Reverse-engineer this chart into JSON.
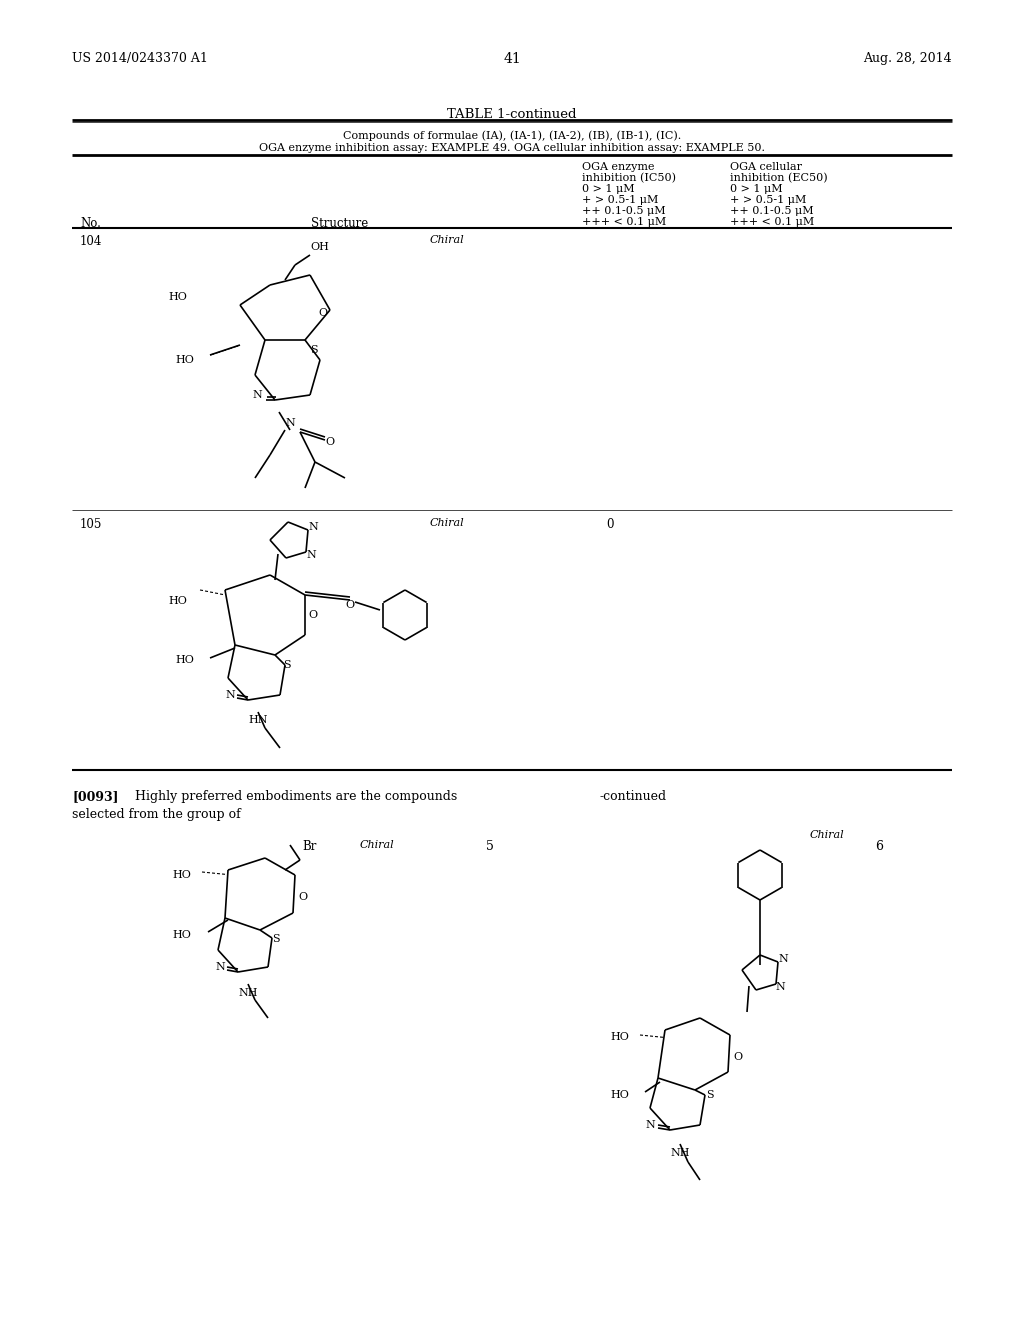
{
  "page_num": "41",
  "patent_num": "US 2014/0243370 A1",
  "patent_date": "Aug. 28, 2014",
  "table_title": "TABLE 1-continued",
  "table_subtitle1": "Compounds of formulae (IA), (IA-1), (IA-2), (IB), (IB-1), (IC).",
  "table_subtitle2": "OGA enzyme inhibition assay: EXAMPLE 49. OGA cellular inhibition assay: EXAMPLE 50.",
  "col1_header": "OGA enzyme\ninhibition (IC50)\n0 > 1 μM\n+ > 0.5-1 μM\n++ 0.1-0.5 μM\n+++ < 0.1 μM",
  "col2_header": "OGA cellular\ninhibition (EC50)\n0 > 1 μM\n+ > 0.5-1 μM\n++ 0.1-0.5 μM\n+++ < 0.1 μM",
  "no_header": "No.",
  "struct_header": "Structure",
  "row104_no": "104",
  "row104_label": "Chiral",
  "row104_enz": "",
  "row104_cell": "",
  "row105_no": "105",
  "row105_label": "Chiral",
  "row105_enz": "0",
  "row105_cell": "",
  "paragraph_num": "[0093]",
  "paragraph_text": "Highly preferred embodiments are the compounds\nselected from the group of",
  "continued_label": "-continued",
  "compound5_label": "5",
  "compound5_chirality": "Chiral",
  "compound5_br": "Br",
  "compound6_label": "6",
  "compound6_chirality": "Chiral",
  "bg_color": "#ffffff",
  "text_color": "#000000",
  "line_color": "#000000"
}
